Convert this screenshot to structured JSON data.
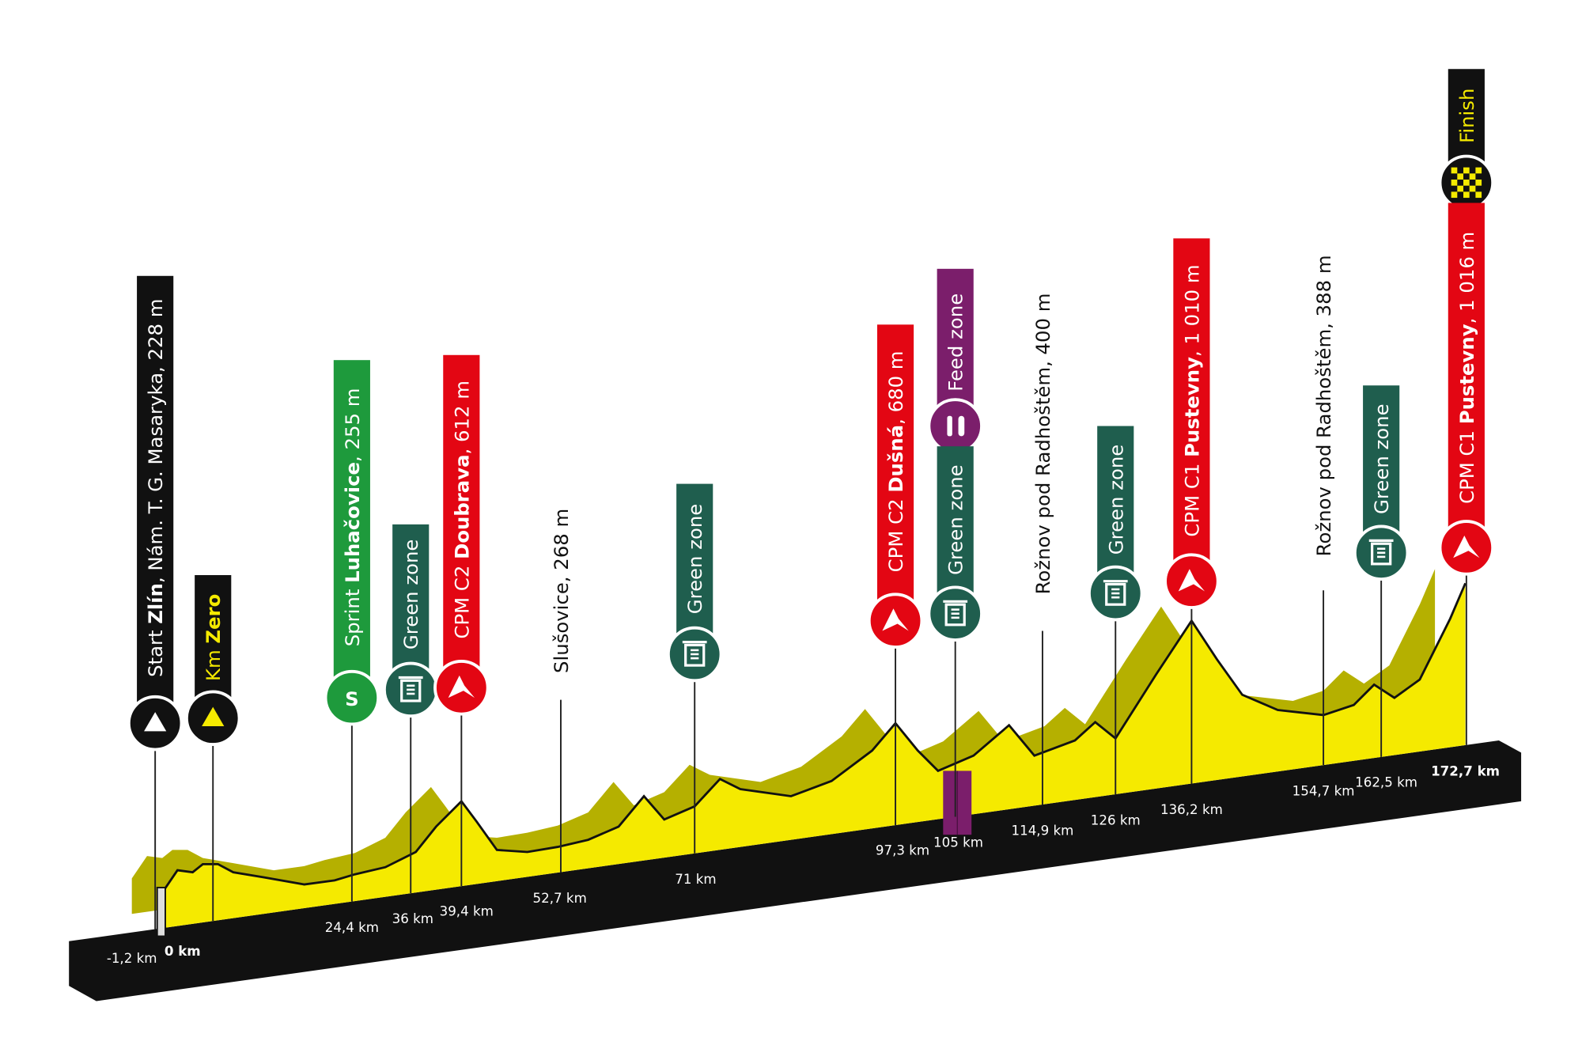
{
  "markers": [
    {
      "parts": [
        "Start ",
        "Zlín",
        ", Nám. T. G. Masaryka, 228 m"
      ]
    },
    {
      "parts": [
        "Km ",
        "Zero"
      ]
    },
    {
      "parts": [
        "Sprint ",
        "Luhačovice",
        ", 255 m"
      ],
      "icon": "S"
    },
    {
      "parts": [
        "Green zone"
      ]
    },
    {
      "parts": [
        "CPM C2 ",
        "Doubrava",
        ", 612 m"
      ]
    },
    {
      "parts": [
        "Slušovice, 268 m"
      ]
    },
    {
      "parts": [
        "Green zone"
      ]
    },
    {
      "parts": [
        "CPM C2 ",
        "Dušná",
        ", 680 m"
      ]
    },
    {
      "parts": [
        "Feed zone"
      ]
    },
    {
      "parts": [
        "Green zone"
      ]
    },
    {
      "parts": [
        "Rožnov pod Radhoštěm, 400 m"
      ]
    },
    {
      "parts": [
        "Green zone"
      ]
    },
    {
      "parts": [
        "CPM C1 ",
        "Pustevny",
        ", 1 010 m"
      ]
    },
    {
      "parts": [
        "Rožnov pod Radhoštěm, 388 m"
      ]
    },
    {
      "parts": [
        "Green zone"
      ]
    },
    {
      "parts": [
        "Finish"
      ]
    },
    {
      "parts": [
        "CPM C1 ",
        "Pustevny",
        ", 1 016 m"
      ]
    }
  ],
  "km": [
    "-1,2 km",
    "0 km",
    "24,4 km",
    "36 km",
    "39,4 km",
    "52,7 km",
    "71 km",
    "97,3 km",
    "105 km",
    "114,9 km",
    "126 km",
    "136,2 km",
    "154,7 km",
    "162,5 km",
    "172,7 km"
  ]
}
